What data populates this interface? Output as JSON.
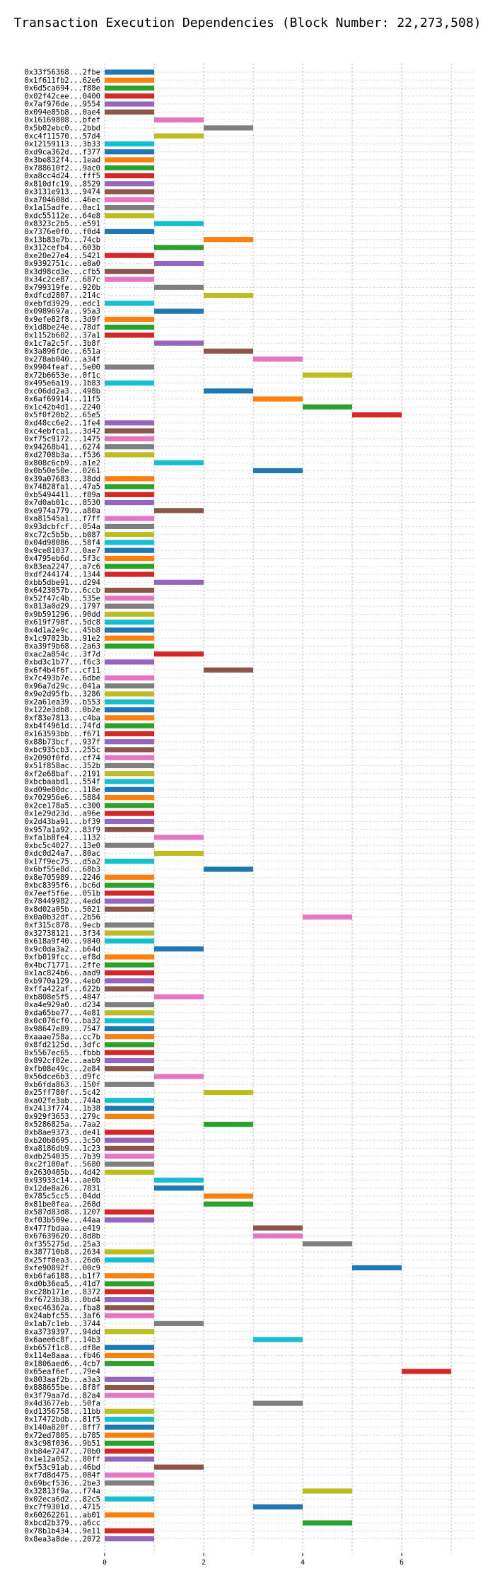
{
  "chart_data": {
    "type": "bar",
    "orientation": "horizontal-gantt",
    "title": "Transaction Execution Dependencies (Block Number: 22,273,508)",
    "xlabel": "",
    "ylabel": "",
    "xlim": [
      0,
      7.5
    ],
    "xticks": [
      0,
      2,
      4,
      6
    ],
    "grid": true,
    "legend": "none",
    "bar_width": 1,
    "colors": {
      "blue": "#1f77b4",
      "orange": "#ff7f0e",
      "green": "#2ca02c",
      "red": "#d62728",
      "purple": "#9467bd",
      "brown": "#8c564b",
      "pink": "#e377c2",
      "gray": "#7f7f7f",
      "olive": "#bcbd22",
      "cyan": "#17becf"
    },
    "transactions": [
      {
        "label": "0x33f56368...2fbe",
        "start": 0,
        "color": "blue"
      },
      {
        "label": "0x1f611fb2...62e6",
        "start": 0,
        "color": "orange"
      },
      {
        "label": "0x6d5ca694...f88e",
        "start": 0,
        "color": "green"
      },
      {
        "label": "0x02f42cee...0400",
        "start": 0,
        "color": "red"
      },
      {
        "label": "0x7af976de...9554",
        "start": 0,
        "color": "purple"
      },
      {
        "label": "0x094e85b8...0ae4",
        "start": 0,
        "color": "brown"
      },
      {
        "label": "0x16169808...bfef",
        "start": 1,
        "color": "pink"
      },
      {
        "label": "0x5b02ebc0...2bbd",
        "start": 2,
        "color": "gray"
      },
      {
        "label": "0xc4f11570...57d4",
        "start": 1,
        "color": "olive"
      },
      {
        "label": "0x12159113...3b33",
        "start": 0,
        "color": "cyan"
      },
      {
        "label": "0xd9ca362d...f377",
        "start": 0,
        "color": "blue"
      },
      {
        "label": "0x3be832f4...1ead",
        "start": 0,
        "color": "orange"
      },
      {
        "label": "0x788610f2...9ac0",
        "start": 0,
        "color": "green"
      },
      {
        "label": "0xa8cc4d24...fff5",
        "start": 0,
        "color": "red"
      },
      {
        "label": "0x810dfc19...8529",
        "start": 0,
        "color": "purple"
      },
      {
        "label": "0x3131e913...9474",
        "start": 0,
        "color": "brown"
      },
      {
        "label": "0xa704608d...46ec",
        "start": 0,
        "color": "pink"
      },
      {
        "label": "0x1a15adfe...0ac1",
        "start": 0,
        "color": "gray"
      },
      {
        "label": "0xdc55112e...64e8",
        "start": 0,
        "color": "olive"
      },
      {
        "label": "0x8323c2b5...e591",
        "start": 1,
        "color": "cyan"
      },
      {
        "label": "0x7376e0f0...f0d4",
        "start": 0,
        "color": "blue"
      },
      {
        "label": "0x13b83e7b...74cb",
        "start": 2,
        "color": "orange"
      },
      {
        "label": "0x312cefb4...603b",
        "start": 1,
        "color": "green"
      },
      {
        "label": "0xe20e27e4...5421",
        "start": 0,
        "color": "red"
      },
      {
        "label": "0x9392751c...e8a0",
        "start": 1,
        "color": "purple"
      },
      {
        "label": "0x3d98cd3e...cfb5",
        "start": 0,
        "color": "brown"
      },
      {
        "label": "0x34c2ce87...687c",
        "start": 0,
        "color": "pink"
      },
      {
        "label": "0x799319fe...920b",
        "start": 1,
        "color": "gray"
      },
      {
        "label": "0xdfcd2807...214c",
        "start": 2,
        "color": "olive"
      },
      {
        "label": "0xebfd3929...edc1",
        "start": 0,
        "color": "cyan"
      },
      {
        "label": "0x0989697a...95a3",
        "start": 1,
        "color": "blue"
      },
      {
        "label": "0x9efe82f8...3d9f",
        "start": 0,
        "color": "orange"
      },
      {
        "label": "0x1d8be24e...78df",
        "start": 0,
        "color": "green"
      },
      {
        "label": "0x1152b602...37a1",
        "start": 0,
        "color": "red"
      },
      {
        "label": "0x1c7a2c5f...3b8f",
        "start": 1,
        "color": "purple"
      },
      {
        "label": "0x3a896fde...651a",
        "start": 2,
        "color": "brown"
      },
      {
        "label": "0x278ab040...a34f",
        "start": 3,
        "color": "pink"
      },
      {
        "label": "0x9904feaf...5e00",
        "start": 0,
        "color": "gray"
      },
      {
        "label": "0x72b6653e...0f1c",
        "start": 4,
        "color": "olive"
      },
      {
        "label": "0x495e6a19...1b83",
        "start": 0,
        "color": "cyan"
      },
      {
        "label": "0xc06dd2a3...498b",
        "start": 2,
        "color": "blue"
      },
      {
        "label": "0x6af69914...11f5",
        "start": 3,
        "color": "orange"
      },
      {
        "label": "0x1c42b4d1...2240",
        "start": 4,
        "color": "green"
      },
      {
        "label": "0x5f0f20b2...65e5",
        "start": 5,
        "color": "red"
      },
      {
        "label": "0xd48cc6e2...1fe4",
        "start": 0,
        "color": "purple"
      },
      {
        "label": "0xc4ebfca1...3d42",
        "start": 0,
        "color": "brown"
      },
      {
        "label": "0xf75c9172...1475",
        "start": 0,
        "color": "pink"
      },
      {
        "label": "0x94268b41...6274",
        "start": 0,
        "color": "gray"
      },
      {
        "label": "0xd2708b3a...f536",
        "start": 0,
        "color": "olive"
      },
      {
        "label": "0x808c6cb9...a1e2",
        "start": 1,
        "color": "cyan"
      },
      {
        "label": "0x0b50e50e...0261",
        "start": 3,
        "color": "blue"
      },
      {
        "label": "0x39a07683...38dd",
        "start": 0,
        "color": "orange"
      },
      {
        "label": "0x74828fa1...47a5",
        "start": 0,
        "color": "green"
      },
      {
        "label": "0xb5494411...f89a",
        "start": 0,
        "color": "red"
      },
      {
        "label": "0x7d0ab01c...8530",
        "start": 0,
        "color": "purple"
      },
      {
        "label": "0xe974a779...a80a",
        "start": 1,
        "color": "brown"
      },
      {
        "label": "0xa81545a1...f7ff",
        "start": 0,
        "color": "pink"
      },
      {
        "label": "0x93dcbfcf...054a",
        "start": 0,
        "color": "gray"
      },
      {
        "label": "0xc72c5b5b...b087",
        "start": 0,
        "color": "olive"
      },
      {
        "label": "0x04d98086...58f4",
        "start": 0,
        "color": "cyan"
      },
      {
        "label": "0x9ce81037...0ae7",
        "start": 0,
        "color": "blue"
      },
      {
        "label": "0x4795eb6d...5f3c",
        "start": 0,
        "color": "orange"
      },
      {
        "label": "0x83ea2247...a7c6",
        "start": 0,
        "color": "green"
      },
      {
        "label": "0xdf244174...1344",
        "start": 0,
        "color": "red"
      },
      {
        "label": "0xbb5dbe91...d294",
        "start": 1,
        "color": "purple"
      },
      {
        "label": "0x6423057b...6ccb",
        "start": 0,
        "color": "brown"
      },
      {
        "label": "0x52f47c4b...535e",
        "start": 0,
        "color": "pink"
      },
      {
        "label": "0x813a0d29...1797",
        "start": 0,
        "color": "gray"
      },
      {
        "label": "0x9b591296...90dd",
        "start": 0,
        "color": "olive"
      },
      {
        "label": "0x619f798f...5dc8",
        "start": 0,
        "color": "cyan"
      },
      {
        "label": "0x4d1a2e9c...45b8",
        "start": 0,
        "color": "blue"
      },
      {
        "label": "0x1c97023b...91e2",
        "start": 0,
        "color": "orange"
      },
      {
        "label": "0xa39f9b68...2a63",
        "start": 0,
        "color": "green"
      },
      {
        "label": "0xac2a854c...3f7d",
        "start": 1,
        "color": "red"
      },
      {
        "label": "0xbd3c1b77...f6c3",
        "start": 0,
        "color": "purple"
      },
      {
        "label": "0x6f4b4f6f...cf11",
        "start": 2,
        "color": "brown"
      },
      {
        "label": "0x7c493b7e...6dbe",
        "start": 0,
        "color": "pink"
      },
      {
        "label": "0x96a7d29c...041a",
        "start": 0,
        "color": "gray"
      },
      {
        "label": "0x9e2d95fb...3286",
        "start": 0,
        "color": "olive"
      },
      {
        "label": "0x2a61ea39...b553",
        "start": 0,
        "color": "cyan"
      },
      {
        "label": "0x122e3db8...0b2e",
        "start": 0,
        "color": "blue"
      },
      {
        "label": "0xf83e7813...c4ba",
        "start": 0,
        "color": "orange"
      },
      {
        "label": "0xb4f4961d...74fd",
        "start": 0,
        "color": "green"
      },
      {
        "label": "0x163593bb...f671",
        "start": 0,
        "color": "red"
      },
      {
        "label": "0x88b73bcf...937f",
        "start": 0,
        "color": "purple"
      },
      {
        "label": "0xbc935cb3...255c",
        "start": 0,
        "color": "brown"
      },
      {
        "label": "0x2090f0fd...cf74",
        "start": 0,
        "color": "pink"
      },
      {
        "label": "0x51f858ac...352b",
        "start": 0,
        "color": "gray"
      },
      {
        "label": "0xf2e68baf...2191",
        "start": 0,
        "color": "olive"
      },
      {
        "label": "0xbcbaabd1...554f",
        "start": 0,
        "color": "cyan"
      },
      {
        "label": "0xd09e80dc...118e",
        "start": 0,
        "color": "blue"
      },
      {
        "label": "0x702956e6...5884",
        "start": 0,
        "color": "orange"
      },
      {
        "label": "0x2ce178a5...c300",
        "start": 0,
        "color": "green"
      },
      {
        "label": "0x1e29d23d...a96e",
        "start": 0,
        "color": "red"
      },
      {
        "label": "0x2d43ba91...bf39",
        "start": 0,
        "color": "purple"
      },
      {
        "label": "0x957a1a92...83f9",
        "start": 0,
        "color": "brown"
      },
      {
        "label": "0xfa1b8fe4...1132",
        "start": 1,
        "color": "pink"
      },
      {
        "label": "0xbc5c4027...13e0",
        "start": 0,
        "color": "gray"
      },
      {
        "label": "0xdc0d24a7...80ac",
        "start": 1,
        "color": "olive"
      },
      {
        "label": "0x17f9ec75...d5a2",
        "start": 0,
        "color": "cyan"
      },
      {
        "label": "0x6bf55e8d...68b3",
        "start": 2,
        "color": "blue"
      },
      {
        "label": "0x8e705989...2246",
        "start": 0,
        "color": "orange"
      },
      {
        "label": "0xbc8395f6...bc6d",
        "start": 0,
        "color": "green"
      },
      {
        "label": "0x7eef5f6e...051b",
        "start": 0,
        "color": "red"
      },
      {
        "label": "0x78449982...4edd",
        "start": 0,
        "color": "purple"
      },
      {
        "label": "0x8d02a05b...5021",
        "start": 0,
        "color": "brown"
      },
      {
        "label": "0x0a0b32df...2b56",
        "start": 4,
        "color": "pink"
      },
      {
        "label": "0xf315c878...9ecb",
        "start": 0,
        "color": "gray"
      },
      {
        "label": "0x32738121...3f34",
        "start": 0,
        "color": "olive"
      },
      {
        "label": "0x618a9f40...9840",
        "start": 0,
        "color": "cyan"
      },
      {
        "label": "0x9c0da3a2...b64d",
        "start": 1,
        "color": "blue"
      },
      {
        "label": "0xfb019fcc...ef8d",
        "start": 0,
        "color": "orange"
      },
      {
        "label": "0x4bc71771...2ffe",
        "start": 0,
        "color": "green"
      },
      {
        "label": "0x1ac824b6...aad9",
        "start": 0,
        "color": "red"
      },
      {
        "label": "0xb970a129...4eb0",
        "start": 0,
        "color": "purple"
      },
      {
        "label": "0xffa422af...622b",
        "start": 0,
        "color": "brown"
      },
      {
        "label": "0xb808e5f5...4847",
        "start": 1,
        "color": "pink"
      },
      {
        "label": "0xa4e929a0...d234",
        "start": 0,
        "color": "gray"
      },
      {
        "label": "0xda65be77...4e81",
        "start": 0,
        "color": "olive"
      },
      {
        "label": "0x0c076cf0...ba32",
        "start": 0,
        "color": "cyan"
      },
      {
        "label": "0x98647e89...7547",
        "start": 0,
        "color": "blue"
      },
      {
        "label": "0xaaae758a...cc7b",
        "start": 0,
        "color": "orange"
      },
      {
        "label": "0x8fd2125d...3dfc",
        "start": 0,
        "color": "green"
      },
      {
        "label": "0x5567ec65...fbbb",
        "start": 0,
        "color": "red"
      },
      {
        "label": "0x892cf02e...aab9",
        "start": 0,
        "color": "purple"
      },
      {
        "label": "0xfb08e49c...2e84",
        "start": 0,
        "color": "brown"
      },
      {
        "label": "0x56dce6b3...d9fc",
        "start": 1,
        "color": "pink"
      },
      {
        "label": "0xb6fda863...150f",
        "start": 0,
        "color": "gray"
      },
      {
        "label": "0x25ff780f...5c42",
        "start": 2,
        "color": "olive"
      },
      {
        "label": "0xa02fe3ab...744a",
        "start": 0,
        "color": "cyan"
      },
      {
        "label": "0x2413f774...1b38",
        "start": 0,
        "color": "blue"
      },
      {
        "label": "0x929f3653...279c",
        "start": 0,
        "color": "orange"
      },
      {
        "label": "0x5286825a...7aa2",
        "start": 2,
        "color": "green"
      },
      {
        "label": "0xb8ae9373...de41",
        "start": 0,
        "color": "red"
      },
      {
        "label": "0xb20b8695...3c50",
        "start": 0,
        "color": "purple"
      },
      {
        "label": "0xa8186db9...1c23",
        "start": 0,
        "color": "brown"
      },
      {
        "label": "0xdb254035...7b39",
        "start": 0,
        "color": "pink"
      },
      {
        "label": "0xc2f100af...5680",
        "start": 0,
        "color": "gray"
      },
      {
        "label": "0x2630405b...4d42",
        "start": 0,
        "color": "olive"
      },
      {
        "label": "0x93933c14...ae0b",
        "start": 1,
        "color": "cyan"
      },
      {
        "label": "0x12de8a26...7831",
        "start": 1,
        "color": "blue"
      },
      {
        "label": "0x785c5cc5...04dd",
        "start": 2,
        "color": "orange"
      },
      {
        "label": "0x81be0fea...268d",
        "start": 2,
        "color": "green"
      },
      {
        "label": "0x587d83d8...1207",
        "start": 0,
        "color": "red"
      },
      {
        "label": "0xf03b509e...44aa",
        "start": 0,
        "color": "purple"
      },
      {
        "label": "0x477fbdaa...e419",
        "start": 3,
        "color": "brown"
      },
      {
        "label": "0x67639620...8d8b",
        "start": 3,
        "color": "pink"
      },
      {
        "label": "0xf355275d...25a3",
        "start": 4,
        "color": "gray"
      },
      {
        "label": "0x387710b8...2634",
        "start": 0,
        "color": "olive"
      },
      {
        "label": "0x25ff0ea3...26d6",
        "start": 0,
        "color": "cyan"
      },
      {
        "label": "0xfe90892f...00c9",
        "start": 5,
        "color": "blue"
      },
      {
        "label": "0xb6fa6188...b1f7",
        "start": 0,
        "color": "orange"
      },
      {
        "label": "0xd0b36ea5...41d7",
        "start": 0,
        "color": "green"
      },
      {
        "label": "0xc28b171e...8372",
        "start": 0,
        "color": "red"
      },
      {
        "label": "0xf6723b38...0bd4",
        "start": 0,
        "color": "purple"
      },
      {
        "label": "0xec46362a...fba8",
        "start": 0,
        "color": "brown"
      },
      {
        "label": "0x24abfc55...3af6",
        "start": 0,
        "color": "pink"
      },
      {
        "label": "0x1ab7c1eb...3744",
        "start": 1,
        "color": "gray"
      },
      {
        "label": "0xa3739397...94dd",
        "start": 0,
        "color": "olive"
      },
      {
        "label": "0x6aee6c8f...14b3",
        "start": 3,
        "color": "cyan"
      },
      {
        "label": "0xb657f1c8...df8e",
        "start": 0,
        "color": "blue"
      },
      {
        "label": "0x114e8aaa...fb46",
        "start": 0,
        "color": "orange"
      },
      {
        "label": "0x1806aed6...4cb7",
        "start": 0,
        "color": "green"
      },
      {
        "label": "0x65eaf6ef...79e4",
        "start": 6,
        "color": "red"
      },
      {
        "label": "0x803aaf2b...a3a3",
        "start": 0,
        "color": "purple"
      },
      {
        "label": "0x888655be...8f8f",
        "start": 0,
        "color": "brown"
      },
      {
        "label": "0x3f79aa7d...82a4",
        "start": 0,
        "color": "pink"
      },
      {
        "label": "0x4d3677eb...50fa",
        "start": 3,
        "color": "gray"
      },
      {
        "label": "0xd1356758...11bb",
        "start": 0,
        "color": "olive"
      },
      {
        "label": "0x17472bdb...81f5",
        "start": 0,
        "color": "cyan"
      },
      {
        "label": "0x140a820f...8ff7",
        "start": 0,
        "color": "blue"
      },
      {
        "label": "0x72ed7805...b785",
        "start": 0,
        "color": "orange"
      },
      {
        "label": "0x3c98f036...9b51",
        "start": 0,
        "color": "green"
      },
      {
        "label": "0xb84e7247...70b0",
        "start": 0,
        "color": "red"
      },
      {
        "label": "0x1e12a052...80ff",
        "start": 0,
        "color": "purple"
      },
      {
        "label": "0xf53c91ab...46bd",
        "start": 1,
        "color": "brown"
      },
      {
        "label": "0xf7d8d475...084f",
        "start": 0,
        "color": "pink"
      },
      {
        "label": "0x69bcf536...2be3",
        "start": 0,
        "color": "gray"
      },
      {
        "label": "0x32813f9a...f74a",
        "start": 4,
        "color": "olive"
      },
      {
        "label": "0x02eca6d2...82c5",
        "start": 0,
        "color": "cyan"
      },
      {
        "label": "0xc7f9301d...4715",
        "start": 3,
        "color": "blue"
      },
      {
        "label": "0x60262261...ab01",
        "start": 0,
        "color": "orange"
      },
      {
        "label": "0xbcd2b379...a6cc",
        "start": 4,
        "color": "green"
      },
      {
        "label": "0x78b1b434...9e11",
        "start": 0,
        "color": "red"
      },
      {
        "label": "0x8ea3a8de...2072",
        "start": 0,
        "color": "purple"
      }
    ]
  }
}
